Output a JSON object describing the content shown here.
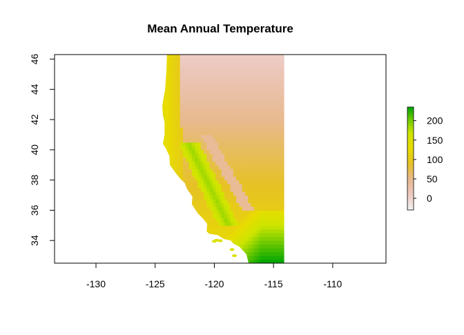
{
  "chart_data": {
    "type": "heatmap",
    "title": "Mean Annual Temperature",
    "xlabel": "",
    "ylabel": "",
    "xlim": [
      -133.5,
      -105.5
    ],
    "ylim": [
      32.5,
      46.3
    ],
    "x_ticks": [
      -130,
      -125,
      -120,
      -115,
      -110
    ],
    "x_tick_labels": [
      "-130",
      "-125",
      "-120",
      "-115",
      "-110"
    ],
    "y_ticks": [
      34,
      36,
      38,
      40,
      42,
      44,
      46
    ],
    "y_tick_labels": [
      "34",
      "36",
      "38",
      "40",
      "42",
      "44",
      "46"
    ],
    "legend": {
      "placement": "right",
      "range": [
        -30,
        235
      ],
      "ticks": [
        0,
        50,
        100,
        150,
        200
      ],
      "tick_labels": [
        "0",
        "50",
        "100",
        "150",
        "200"
      ]
    },
    "colors": {
      "low": "#f2f2f2",
      "mid_low": "#e8b98f",
      "mid": "#e6c224",
      "mid_high": "#cde500",
      "high": "#00a600"
    },
    "raster_extent": {
      "lon": [
        -124.4,
        -114.1
      ],
      "lat": [
        32.5,
        46.3
      ]
    },
    "region_values": {
      "northern_plateau": 40,
      "cascades_sierra": -5,
      "coast": 110,
      "central_valley": 170,
      "southern_deserts": 220
    }
  }
}
